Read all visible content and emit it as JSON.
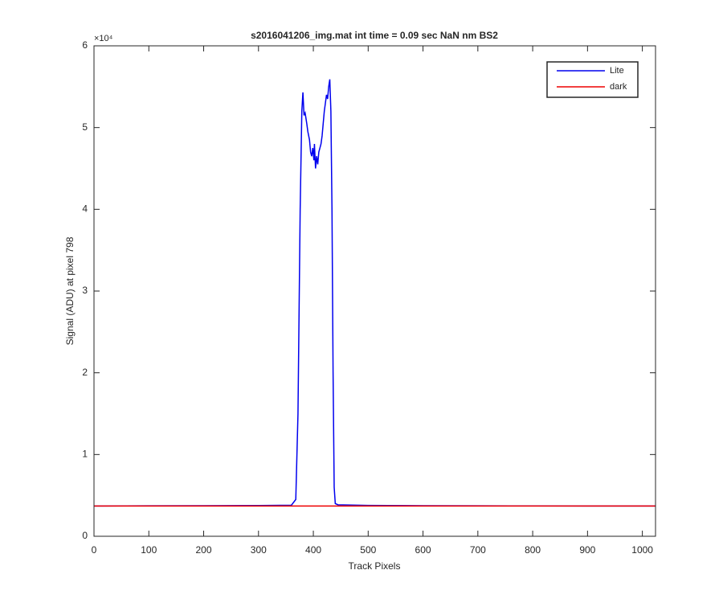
{
  "chart_data": {
    "type": "line",
    "title": "s2016041206_img.mat int time = 0.09 sec  NaN nm BS2",
    "x_label": "Track Pixels",
    "y_label": "Signal (ADU) at pixel 798",
    "y_multiplier": "×10⁴",
    "xlim": [
      0,
      1024
    ],
    "xticks": [
      0,
      100,
      200,
      300,
      400,
      500,
      600,
      700,
      800,
      900,
      1000
    ],
    "ylim": [
      0,
      60000
    ],
    "yticks": [
      {
        "value": 0,
        "label": "0"
      },
      {
        "value": 10000,
        "label": "1"
      },
      {
        "value": 20000,
        "label": "2"
      },
      {
        "value": 30000,
        "label": "3"
      },
      {
        "value": 40000,
        "label": "4"
      },
      {
        "value": 50000,
        "label": "5"
      },
      {
        "value": 60000,
        "label": "6"
      }
    ],
    "legend": "top-right",
    "series": [
      {
        "name": "Lite",
        "color": "#0000ee",
        "x": [
          0,
          100,
          200,
          300,
          360,
          368,
          372,
          376,
          379,
          381,
          383,
          385,
          388,
          390,
          393,
          395,
          397,
          399,
          401,
          402,
          404,
          406,
          408,
          410,
          412,
          414,
          416,
          418,
          420,
          422,
          424,
          426,
          428,
          430,
          432,
          434,
          436,
          438,
          440,
          445,
          500,
          600,
          700,
          800,
          900,
          1024
        ],
        "values": [
          3700,
          3720,
          3740,
          3760,
          3800,
          4500,
          15000,
          40000,
          52000,
          54300,
          51500,
          51800,
          50500,
          49500,
          48500,
          47000,
          46500,
          47500,
          46000,
          48000,
          45000,
          46500,
          45500,
          47000,
          47500,
          48000,
          49000,
          50500,
          52000,
          53000,
          54000,
          53500,
          55000,
          55900,
          52000,
          40000,
          20000,
          6000,
          4000,
          3850,
          3780,
          3740,
          3720,
          3710,
          3700,
          3700
        ]
      },
      {
        "name": "dark",
        "color": "#ee0000",
        "x": [
          0,
          1024
        ],
        "values": [
          3700,
          3700
        ]
      }
    ]
  }
}
